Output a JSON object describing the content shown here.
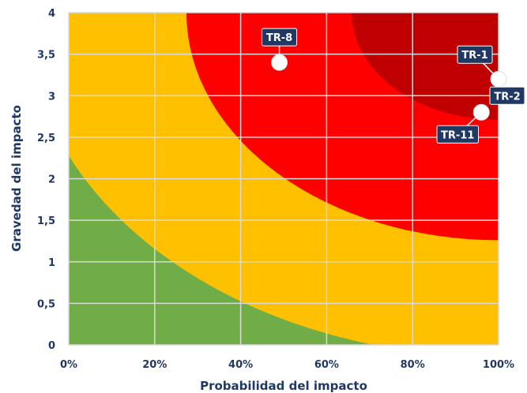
{
  "chart_data": {
    "type": "scatter",
    "title": "",
    "xlabel": "Probabilidad del impacto",
    "ylabel": "Gravedad del impacto",
    "xlim": [
      0,
      100
    ],
    "ylim": [
      0,
      4
    ],
    "x_ticks": [
      {
        "value": 0,
        "label": "0%"
      },
      {
        "value": 20,
        "label": "20%"
      },
      {
        "value": 40,
        "label": "40%"
      },
      {
        "value": 60,
        "label": "60%"
      },
      {
        "value": 80,
        "label": "80%"
      },
      {
        "value": 100,
        "label": "100%"
      }
    ],
    "y_ticks": [
      {
        "value": 0,
        "label": "0"
      },
      {
        "value": 0.5,
        "label": "0,5"
      },
      {
        "value": 1,
        "label": "1"
      },
      {
        "value": 1.5,
        "label": "1,5"
      },
      {
        "value": 2,
        "label": "2"
      },
      {
        "value": 2.5,
        "label": "2,5"
      },
      {
        "value": 3,
        "label": "3"
      },
      {
        "value": 3.5,
        "label": "3,5"
      },
      {
        "value": 4,
        "label": "4"
      }
    ],
    "grid": true,
    "zones": [
      {
        "level": "bajo",
        "color": "#70ad47"
      },
      {
        "level": "medio",
        "color": "#ffc000"
      },
      {
        "level": "alto",
        "color": "#ff0000"
      },
      {
        "level": "crítico",
        "color": "#c00000"
      }
    ],
    "points": [
      {
        "label": "TR-8",
        "x": 49,
        "y": 3.4
      },
      {
        "label": "TR-1",
        "x": 100,
        "y": 3.2
      },
      {
        "label": "TR-2",
        "x": 100,
        "y": 3.0
      },
      {
        "label": "TR-11",
        "x": 96,
        "y": 2.8
      }
    ]
  },
  "colors": {
    "axis_text": "#1f3864",
    "label_box": "#1f3864",
    "point": "#ffffff"
  }
}
